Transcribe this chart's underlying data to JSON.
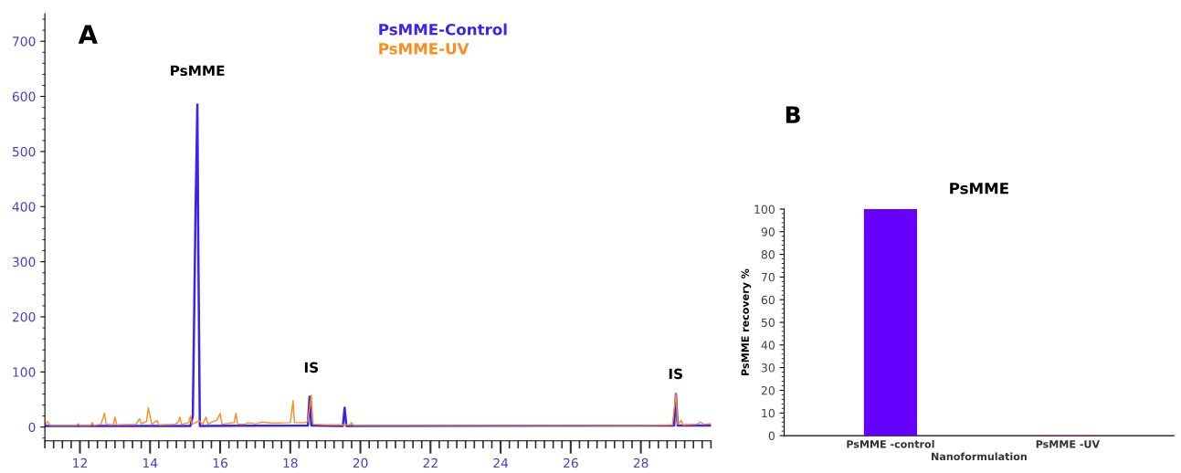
{
  "chart_data": [
    {
      "type": "line",
      "xlim": [
        11,
        30
      ],
      "ylim": [
        -25,
        750
      ],
      "xticks": [
        12,
        14,
        16,
        18,
        20,
        22,
        24,
        26,
        28
      ],
      "yticks": [
        0,
        100,
        200,
        300,
        400,
        500,
        600,
        700
      ],
      "legend": false,
      "grid": false,
      "marker": "none",
      "line_style": "solid",
      "annotations": [
        "A",
        "PsMME",
        "IS",
        "IS"
      ],
      "series": [
        {
          "name": "PsMME-Control",
          "color": "#3a22f0",
          "x": [
            11,
            15.15,
            15.22,
            15.3,
            15.35,
            15.38,
            15.42,
            18.5,
            18.55,
            18.6,
            19.5,
            19.55,
            19.6,
            28.95,
            29.0,
            29.05,
            30
          ],
          "values": [
            2,
            2,
            20,
            400,
            585,
            300,
            2,
            3,
            55,
            3,
            2,
            35,
            2,
            3,
            60,
            3,
            3
          ]
        },
        {
          "name": "PsMME-UV",
          "color": "#ff8c1a",
          "x": [
            11.0,
            11.08,
            11.15,
            11.9,
            11.95,
            12.0,
            12.3,
            12.35,
            12.4,
            12.6,
            12.65,
            12.7,
            12.75,
            12.95,
            13.0,
            13.05,
            13.6,
            13.7,
            13.75,
            13.9,
            13.95,
            14.0,
            14.05,
            14.2,
            14.25,
            14.7,
            14.8,
            14.85,
            14.9,
            15.1,
            15.15,
            15.2,
            15.3,
            15.4,
            15.5,
            15.6,
            15.65,
            15.8,
            15.9,
            16.0,
            16.05,
            16.4,
            16.45,
            16.5,
            16.7,
            16.8,
            17.0,
            17.2,
            17.5,
            18.0,
            18.08,
            18.12,
            18.4,
            18.5,
            18.6,
            18.65,
            19.0,
            19.5,
            19.7,
            19.75,
            19.8,
            28,
            28.9,
            29.0,
            29.05,
            29.15,
            29.2,
            29.6,
            29.7,
            29.8,
            30
          ],
          "values": [
            3,
            10,
            3,
            3,
            6,
            3,
            3,
            8,
            3,
            5,
            15,
            25,
            5,
            4,
            18,
            4,
            5,
            15,
            6,
            10,
            35,
            20,
            5,
            12,
            4,
            5,
            8,
            18,
            5,
            8,
            20,
            5,
            8,
            12,
            5,
            18,
            5,
            10,
            12,
            25,
            5,
            8,
            25,
            5,
            5,
            8,
            6,
            9,
            7,
            8,
            48,
            8,
            8,
            10,
            58,
            5,
            4,
            4,
            4,
            8,
            3,
            3,
            4,
            60,
            5,
            12,
            4,
            5,
            9,
            5,
            6
          ]
        }
      ]
    },
    {
      "type": "bar",
      "title": "PsMME",
      "xlabel": "Nanoformulation",
      "ylabel": "PsMME recovery %",
      "categories": [
        "PsMME -control",
        "PsMME -UV"
      ],
      "values": [
        100,
        0.3
      ],
      "colors": [
        "#6600ff",
        "#ff33cc"
      ],
      "ylim": [
        0,
        100
      ],
      "yticks": [
        0,
        10,
        20,
        30,
        40,
        50,
        60,
        70,
        80,
        90,
        100
      ],
      "grid": false,
      "annotations": [
        "B"
      ]
    }
  ]
}
